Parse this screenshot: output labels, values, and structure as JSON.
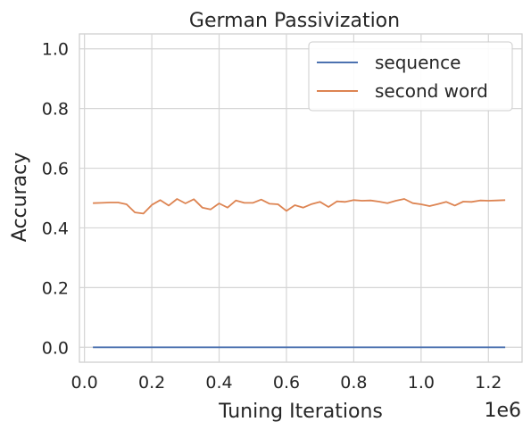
{
  "chart_data": {
    "type": "line",
    "title": "German Passivization",
    "xlabel": "Tuning Iterations",
    "ylabel": "Accuracy",
    "x_offset_label": "1e6",
    "xlim": [
      -0.015,
      1.3
    ],
    "ylim": [
      -0.05,
      1.05
    ],
    "xticks": [
      0.0,
      0.2,
      0.4,
      0.6,
      0.8,
      1.0,
      1.2
    ],
    "xtick_labels": [
      "0.0",
      "0.2",
      "0.4",
      "0.6",
      "0.8",
      "1.0",
      "1.2"
    ],
    "yticks": [
      0.0,
      0.2,
      0.4,
      0.6,
      0.8,
      1.0
    ],
    "ytick_labels": [
      "0.0",
      "0.2",
      "0.4",
      "0.6",
      "0.8",
      "1.0"
    ],
    "grid": true,
    "legend_position": "top-right",
    "x": [
      0.025,
      0.05,
      0.075,
      0.1,
      0.125,
      0.15,
      0.175,
      0.2,
      0.225,
      0.25,
      0.275,
      0.3,
      0.325,
      0.35,
      0.375,
      0.4,
      0.425,
      0.45,
      0.475,
      0.5,
      0.525,
      0.55,
      0.575,
      0.6,
      0.625,
      0.65,
      0.675,
      0.7,
      0.725,
      0.75,
      0.775,
      0.8,
      0.825,
      0.85,
      0.875,
      0.9,
      0.925,
      0.95,
      0.975,
      1.0,
      1.025,
      1.05,
      1.075,
      1.1,
      1.125,
      1.15,
      1.175,
      1.2,
      1.225,
      1.25
    ],
    "series": [
      {
        "name": "sequence",
        "color": "#4c72b0",
        "values": [
          0.0,
          0.0,
          0.0,
          0.0,
          0.0,
          0.0,
          0.0,
          0.0,
          0.0,
          0.0,
          0.0,
          0.0,
          0.0,
          0.0,
          0.0,
          0.0,
          0.0,
          0.0,
          0.0,
          0.0,
          0.0,
          0.0,
          0.0,
          0.0,
          0.0,
          0.0,
          0.0,
          0.0,
          0.0,
          0.0,
          0.0,
          0.0,
          0.0,
          0.0,
          0.0,
          0.0,
          0.0,
          0.0,
          0.0,
          0.0,
          0.0,
          0.0,
          0.0,
          0.0,
          0.0,
          0.0,
          0.0,
          0.0,
          0.0,
          0.0
        ]
      },
      {
        "name": "second word",
        "color": "#dd8452",
        "values": [
          0.483,
          0.484,
          0.485,
          0.485,
          0.479,
          0.452,
          0.448,
          0.477,
          0.493,
          0.475,
          0.497,
          0.482,
          0.496,
          0.468,
          0.462,
          0.482,
          0.468,
          0.492,
          0.484,
          0.484,
          0.495,
          0.481,
          0.479,
          0.457,
          0.476,
          0.468,
          0.48,
          0.487,
          0.47,
          0.489,
          0.487,
          0.493,
          0.491,
          0.492,
          0.488,
          0.483,
          0.491,
          0.497,
          0.483,
          0.479,
          0.473,
          0.48,
          0.487,
          0.475,
          0.488,
          0.487,
          0.492,
          0.491,
          0.492,
          0.493
        ]
      }
    ]
  }
}
